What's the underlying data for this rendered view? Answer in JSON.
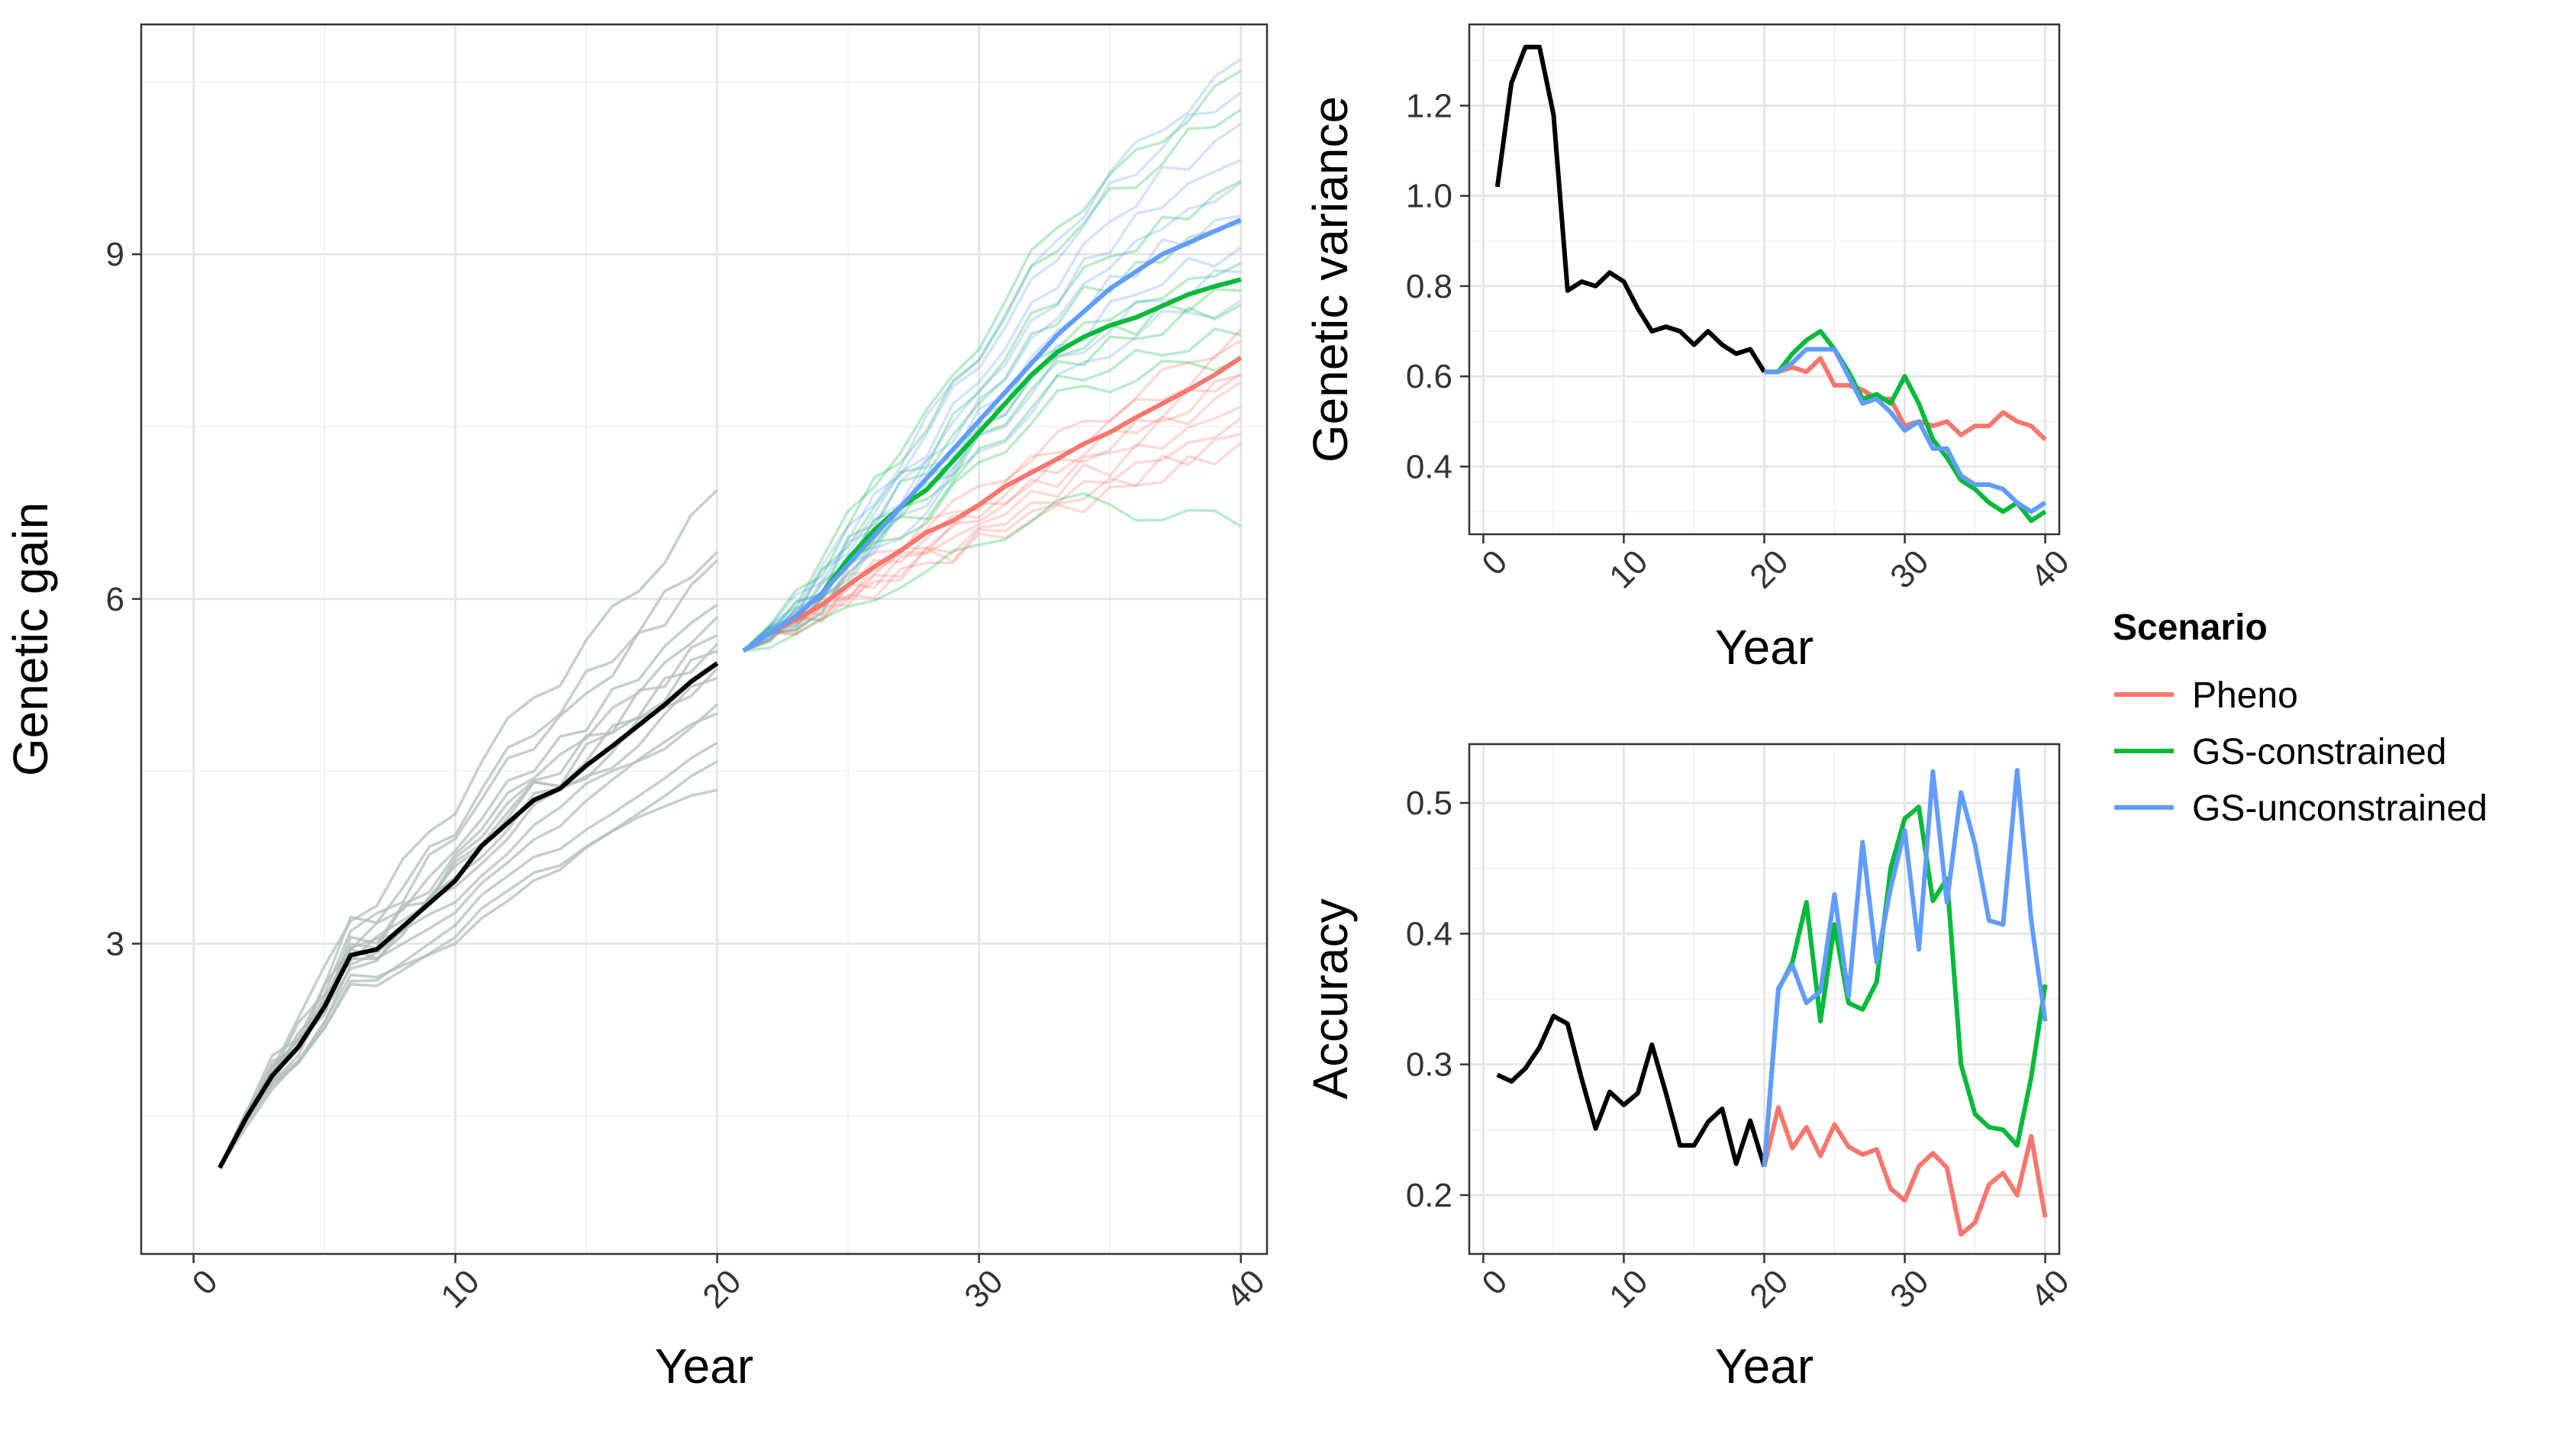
{
  "legend": {
    "title": "Scenario",
    "items": [
      {
        "key": "pheno",
        "label": "Pheno",
        "color": "#F8766D"
      },
      {
        "key": "gsc",
        "label": "GS-constrained",
        "color": "#00BA38"
      },
      {
        "key": "gsu",
        "label": "GS-unconstrained",
        "color": "#619CFF"
      }
    ]
  },
  "chart_data": [
    {
      "id": "gain",
      "type": "line",
      "xlabel": "Year",
      "ylabel": "Genetic gain",
      "xlim": [
        -2,
        41
      ],
      "ylim": [
        0.3,
        11.0
      ],
      "xticks": [
        0,
        10,
        20,
        30,
        40
      ],
      "yticks": [
        3,
        6,
        9
      ],
      "grid": true,
      "burnin": {
        "color": "#000000",
        "x": [
          1,
          2,
          3,
          4,
          5,
          6,
          7,
          8,
          9,
          10,
          11,
          12,
          13,
          14,
          15,
          16,
          17,
          18,
          19,
          20
        ],
        "mean": [
          1.05,
          1.48,
          1.85,
          2.1,
          2.45,
          2.9,
          2.95,
          3.15,
          3.35,
          3.55,
          3.85,
          4.05,
          4.25,
          4.35,
          4.55,
          4.72,
          4.9,
          5.08,
          5.28,
          5.44
        ],
        "replicate_endpoints": [
          6.9,
          6.45,
          6.3,
          5.98,
          5.82,
          5.7,
          5.6,
          5.55,
          5.4,
          5.3,
          5.1,
          4.98,
          4.78,
          4.55,
          4.38
        ],
        "replicate_color": "#b0bfbb"
      },
      "series": [
        {
          "key": "pheno",
          "name": "Pheno",
          "color": "#F8766D",
          "x": [
            21,
            22,
            23,
            24,
            25,
            26,
            27,
            28,
            29,
            30,
            31,
            32,
            33,
            34,
            35,
            36,
            37,
            38,
            39,
            40
          ],
          "values": [
            5.55,
            5.7,
            5.82,
            5.95,
            6.12,
            6.28,
            6.42,
            6.58,
            6.68,
            6.82,
            6.98,
            7.1,
            7.22,
            7.35,
            7.45,
            7.58,
            7.7,
            7.82,
            7.95,
            8.1
          ],
          "replicate_endpoints": [
            8.2,
            8.0,
            7.85,
            7.7,
            7.55,
            7.45,
            7.35,
            7.95,
            8.35
          ]
        },
        {
          "key": "gsc",
          "name": "GS-constrained",
          "color": "#00BA38",
          "x": [
            21,
            22,
            23,
            24,
            25,
            26,
            27,
            28,
            29,
            30,
            31,
            32,
            33,
            34,
            35,
            36,
            37,
            38,
            39,
            40
          ],
          "values": [
            5.55,
            5.7,
            5.85,
            6.05,
            6.35,
            6.6,
            6.8,
            6.95,
            7.2,
            7.45,
            7.7,
            7.95,
            8.15,
            8.28,
            8.38,
            8.45,
            8.55,
            8.65,
            8.72,
            8.78
          ],
          "replicate_endpoints": [
            10.55,
            10.3,
            9.6,
            9.3,
            8.9,
            8.7,
            8.55,
            8.3,
            8.1,
            6.62
          ]
        },
        {
          "key": "gsu",
          "name": "GS-unconstrained",
          "color": "#619CFF",
          "x": [
            21,
            22,
            23,
            24,
            25,
            26,
            27,
            28,
            29,
            30,
            31,
            32,
            33,
            34,
            35,
            36,
            37,
            38,
            39,
            40
          ],
          "values": [
            5.55,
            5.7,
            5.85,
            6.05,
            6.3,
            6.55,
            6.8,
            7.05,
            7.3,
            7.55,
            7.8,
            8.05,
            8.3,
            8.5,
            8.7,
            8.85,
            9.0,
            9.1,
            9.2,
            9.3
          ],
          "replicate_endpoints": [
            10.65,
            10.45,
            10.1,
            9.85,
            9.6,
            9.35,
            9.05,
            8.85,
            8.6
          ]
        }
      ]
    },
    {
      "id": "variance",
      "type": "line",
      "xlabel": "Year",
      "ylabel": "Genetic variance",
      "xlim": [
        -1,
        41
      ],
      "ylim": [
        0.25,
        1.38
      ],
      "xticks": [
        0,
        10,
        20,
        30,
        40
      ],
      "yticks": [
        0.4,
        0.6,
        0.8,
        1.0,
        1.2
      ],
      "ytick_labels": [
        "0.4",
        "0.6",
        "0.8",
        "1.0",
        "1.2"
      ],
      "grid": true,
      "burnin": {
        "color": "#000000",
        "x": [
          1,
          2,
          3,
          4,
          5,
          6,
          7,
          8,
          9,
          10,
          11,
          12,
          13,
          14,
          15,
          16,
          17,
          18,
          19,
          20
        ],
        "values": [
          1.02,
          1.25,
          1.33,
          1.33,
          1.18,
          0.79,
          0.81,
          0.8,
          0.83,
          0.81,
          0.75,
          0.7,
          0.71,
          0.7,
          0.67,
          0.7,
          0.67,
          0.65,
          0.66,
          0.61
        ]
      },
      "series": [
        {
          "key": "pheno",
          "name": "Pheno",
          "color": "#F8766D",
          "x": [
            20,
            21,
            22,
            23,
            24,
            25,
            26,
            27,
            28,
            29,
            30,
            31,
            32,
            33,
            34,
            35,
            36,
            37,
            38,
            39,
            40
          ],
          "values": [
            0.61,
            0.61,
            0.62,
            0.61,
            0.64,
            0.58,
            0.58,
            0.57,
            0.55,
            0.55,
            0.49,
            0.5,
            0.49,
            0.5,
            0.47,
            0.49,
            0.49,
            0.52,
            0.5,
            0.49,
            0.46
          ]
        },
        {
          "key": "gsc",
          "name": "GS-constrained",
          "color": "#00BA38",
          "x": [
            20,
            21,
            22,
            23,
            24,
            25,
            26,
            27,
            28,
            29,
            30,
            31,
            32,
            33,
            34,
            35,
            36,
            37,
            38,
            39,
            40
          ],
          "values": [
            0.61,
            0.61,
            0.65,
            0.68,
            0.7,
            0.66,
            0.61,
            0.55,
            0.56,
            0.54,
            0.6,
            0.54,
            0.46,
            0.42,
            0.37,
            0.35,
            0.32,
            0.3,
            0.32,
            0.28,
            0.3
          ]
        },
        {
          "key": "gsu",
          "name": "GS-unconstrained",
          "color": "#619CFF",
          "x": [
            20,
            21,
            22,
            23,
            24,
            25,
            26,
            27,
            28,
            29,
            30,
            31,
            32,
            33,
            34,
            35,
            36,
            37,
            38,
            39,
            40
          ],
          "values": [
            0.61,
            0.61,
            0.63,
            0.66,
            0.66,
            0.66,
            0.6,
            0.54,
            0.55,
            0.52,
            0.48,
            0.5,
            0.44,
            0.44,
            0.38,
            0.36,
            0.36,
            0.35,
            0.32,
            0.3,
            0.32
          ]
        }
      ]
    },
    {
      "id": "accuracy",
      "type": "line",
      "xlabel": "Year",
      "ylabel": "Accuracy",
      "xlim": [
        -1,
        41
      ],
      "ylim": [
        0.155,
        0.545
      ],
      "xticks": [
        0,
        10,
        20,
        30,
        40
      ],
      "yticks": [
        0.2,
        0.3,
        0.4,
        0.5
      ],
      "ytick_labels": [
        "0.2",
        "0.3",
        "0.4",
        "0.5"
      ],
      "grid": true,
      "burnin": {
        "color": "#000000",
        "x": [
          1,
          2,
          3,
          4,
          5,
          6,
          7,
          8,
          9,
          10,
          11,
          12,
          13,
          14,
          15,
          16,
          17,
          18,
          19,
          20
        ],
        "values": [
          0.292,
          0.287,
          0.297,
          0.313,
          0.337,
          0.331,
          0.289,
          0.251,
          0.279,
          0.269,
          0.278,
          0.315,
          0.278,
          0.238,
          0.238,
          0.256,
          0.266,
          0.224,
          0.257,
          0.222
        ]
      },
      "series": [
        {
          "key": "pheno",
          "name": "Pheno",
          "color": "#F8766D",
          "x": [
            20,
            21,
            22,
            23,
            24,
            25,
            26,
            27,
            28,
            29,
            30,
            31,
            32,
            33,
            34,
            35,
            36,
            37,
            38,
            39,
            40
          ],
          "values": [
            0.222,
            0.267,
            0.236,
            0.252,
            0.23,
            0.254,
            0.237,
            0.231,
            0.235,
            0.205,
            0.196,
            0.222,
            0.232,
            0.221,
            0.17,
            0.179,
            0.208,
            0.217,
            0.2,
            0.245,
            0.183
          ]
        },
        {
          "key": "gsc",
          "name": "GS-constrained",
          "color": "#00BA38",
          "x": [
            20,
            21,
            22,
            23,
            24,
            25,
            26,
            27,
            28,
            29,
            30,
            31,
            32,
            33,
            34,
            35,
            36,
            37,
            38,
            39,
            40
          ],
          "values": [
            0.222,
            0.357,
            0.378,
            0.424,
            0.333,
            0.407,
            0.347,
            0.342,
            0.363,
            0.45,
            0.488,
            0.497,
            0.425,
            0.442,
            0.3,
            0.262,
            0.252,
            0.25,
            0.238,
            0.29,
            0.361
          ]
        },
        {
          "key": "gsu",
          "name": "GS-unconstrained",
          "color": "#619CFF",
          "x": [
            20,
            21,
            22,
            23,
            24,
            25,
            26,
            27,
            28,
            29,
            30,
            31,
            32,
            33,
            34,
            35,
            36,
            37,
            38,
            39,
            40
          ],
          "values": [
            0.222,
            0.358,
            0.376,
            0.347,
            0.356,
            0.43,
            0.352,
            0.47,
            0.378,
            0.435,
            0.479,
            0.388,
            0.524,
            0.424,
            0.508,
            0.468,
            0.41,
            0.407,
            0.525,
            0.41,
            0.333
          ]
        }
      ]
    }
  ]
}
